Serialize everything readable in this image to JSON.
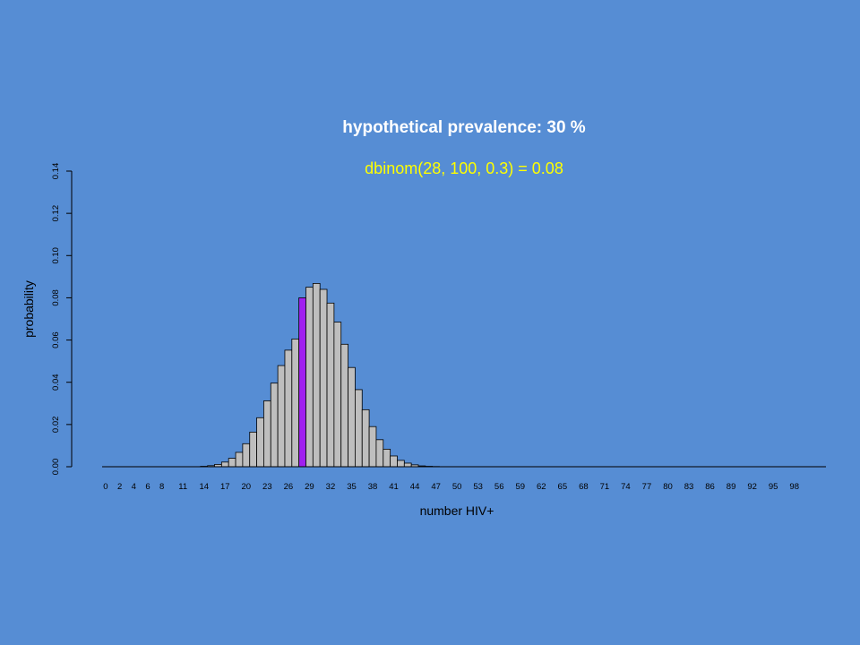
{
  "chart_data": {
    "type": "bar",
    "title": "hypothetical prevalence: 30 %",
    "subtitle": "dbinom(28, 100, 0.3) = 0.08",
    "xlabel": "number HIV+",
    "ylabel": "probability",
    "ylim": [
      0,
      0.14
    ],
    "yticks": [
      "0.00",
      "0.02",
      "0.04",
      "0.06",
      "0.08",
      "0.10",
      "0.12",
      "0.14"
    ],
    "xtick_labels": [
      "0",
      "2",
      "4",
      "6",
      "8",
      "11",
      "14",
      "17",
      "20",
      "23",
      "26",
      "29",
      "32",
      "35",
      "38",
      "41",
      "44",
      "47",
      "50",
      "53",
      "56",
      "59",
      "62",
      "65",
      "68",
      "71",
      "74",
      "77",
      "80",
      "83",
      "86",
      "89",
      "92",
      "95",
      "98"
    ],
    "x_start": 0,
    "x_end": 100,
    "highlight_x": 28,
    "colors": {
      "background": "#568dd4",
      "bar_fill": "#bebebe",
      "highlight_fill": "#a020f0",
      "title": "#ffffff",
      "subtitle": "#ffff00"
    },
    "values": [
      0,
      0,
      0,
      0,
      0,
      0,
      0,
      0,
      0,
      0,
      0,
      0,
      0,
      0,
      0.0002,
      0.0005,
      0.0011,
      0.0022,
      0.004,
      0.0068,
      0.0109,
      0.0164,
      0.0232,
      0.0312,
      0.0396,
      0.0479,
      0.0552,
      0.0605,
      0.08,
      0.085,
      0.0868,
      0.084,
      0.0775,
      0.0685,
      0.058,
      0.047,
      0.0365,
      0.027,
      0.019,
      0.0128,
      0.0083,
      0.0051,
      0.003,
      0.0017,
      0.0009,
      0.0004,
      0.0002,
      0.0001,
      0,
      0,
      0,
      0,
      0,
      0,
      0,
      0,
      0,
      0,
      0,
      0,
      0,
      0,
      0,
      0,
      0,
      0,
      0,
      0,
      0,
      0,
      0,
      0,
      0,
      0,
      0,
      0,
      0,
      0,
      0,
      0,
      0,
      0,
      0,
      0,
      0,
      0,
      0,
      0,
      0,
      0,
      0,
      0,
      0,
      0,
      0,
      0,
      0,
      0,
      0,
      0,
      0,
      0,
      0
    ]
  }
}
